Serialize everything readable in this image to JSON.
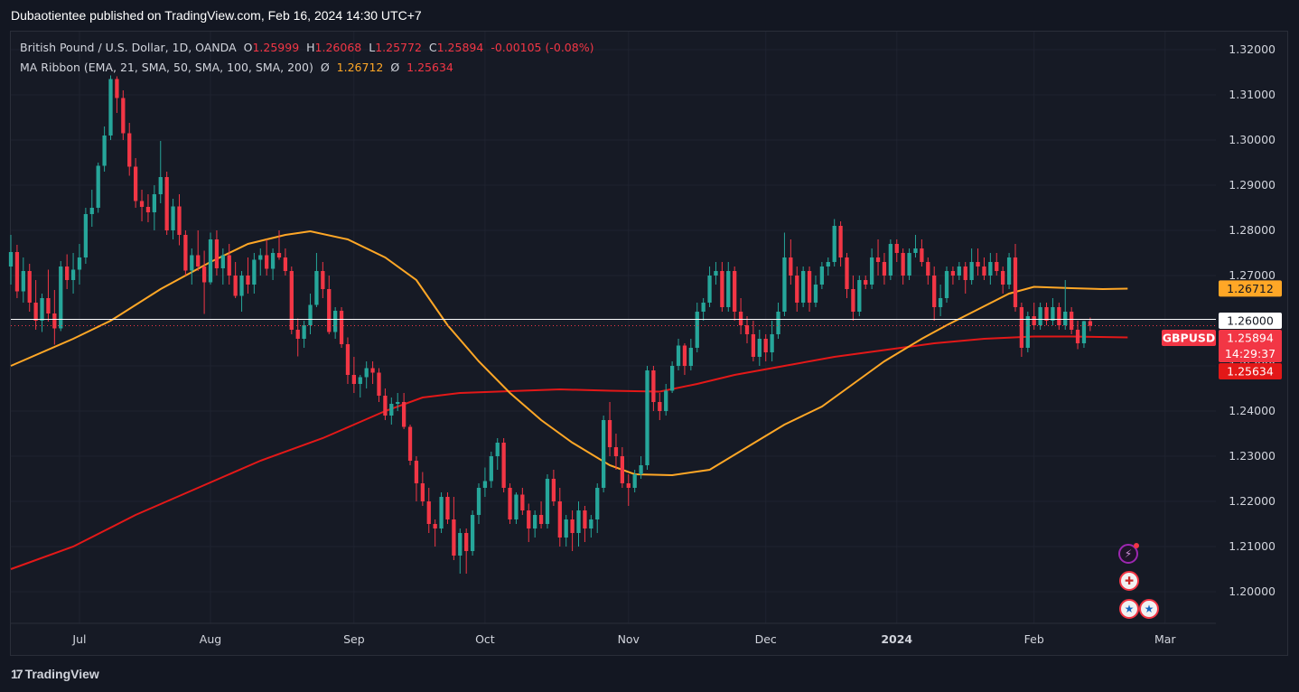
{
  "header": {
    "publisher_line": "Dubaotientee published on TradingView.com, Feb 16, 2024 14:30 UTC+7"
  },
  "legend": {
    "symbol_line": "British Pound / U.S. Dollar, 1D, OANDA",
    "open_label": "O",
    "open": "1.25999",
    "high_label": "H",
    "high": "1.26068",
    "low_label": "L",
    "low": "1.25772",
    "close_label": "C",
    "close": "1.25894",
    "change": "-0.00105 (-0.08%)",
    "ma_ribbon": "MA Ribbon (EMA, 21, SMA, 50, SMA, 100, SMA, 200)",
    "ma_symbol": "Ø",
    "ma_value_1": "1.26712",
    "ma_value_2": "1.25634"
  },
  "footer": {
    "brand": "TradingView",
    "logo": "17"
  },
  "icons": {
    "flash": "lightning-icon",
    "uk_flag": "uk-flag-icon",
    "us_flag": "us-flag-icon",
    "flash_glyph": "⚡",
    "uk_glyph": "✚",
    "us_glyph": "★"
  },
  "colors": {
    "background": "#131722",
    "up": "#26a69a",
    "down": "#f23645",
    "ma_fast": "#ffa726",
    "ma_slow": "#e31818",
    "grid": "#1f2330"
  },
  "chart_data": {
    "type": "candlestick",
    "symbol": "GBPUSD",
    "timeframe": "1D",
    "ylim": [
      1.193,
      1.324
    ],
    "y_ticks": [
      "1.20000",
      "1.21000",
      "1.22000",
      "1.23000",
      "1.24000",
      "1.25000",
      "1.26000",
      "1.27000",
      "1.28000",
      "1.29000",
      "1.30000",
      "1.31000",
      "1.32000"
    ],
    "x_ticks": [
      "Jul",
      "Aug",
      "Sep",
      "Oct",
      "Nov",
      "Dec",
      "2024",
      "Feb",
      "Mar"
    ],
    "x_tick_index": [
      11,
      32,
      55,
      76,
      99,
      121,
      142,
      164,
      185
    ],
    "x_range": [
      0,
      193
    ],
    "candles": [
      [
        1.272,
        1.279,
        1.268,
        1.2752
      ],
      [
        1.2752,
        1.2768,
        1.265,
        1.2665
      ],
      [
        1.2665,
        1.274,
        1.264,
        1.271
      ],
      [
        1.271,
        1.2726,
        1.262,
        1.264
      ],
      [
        1.264,
        1.269,
        1.258,
        1.26
      ],
      [
        1.26,
        1.266,
        1.2575,
        1.265
      ],
      [
        1.265,
        1.2713,
        1.2598,
        1.2616
      ],
      [
        1.2616,
        1.2668,
        1.2547,
        1.2583
      ],
      [
        1.2583,
        1.2732,
        1.2577,
        1.272
      ],
      [
        1.272,
        1.2747,
        1.267,
        1.269
      ],
      [
        1.269,
        1.275,
        1.266,
        1.2713
      ],
      [
        1.2713,
        1.277,
        1.268,
        1.274
      ],
      [
        1.274,
        1.285,
        1.2726,
        1.2836
      ],
      [
        1.2836,
        1.289,
        1.2808,
        1.285
      ],
      [
        1.285,
        1.295,
        1.2839,
        1.2943
      ],
      [
        1.2943,
        1.303,
        1.293,
        1.301
      ],
      [
        1.301,
        1.3143,
        1.3,
        1.3135
      ],
      [
        1.3135,
        1.3141,
        1.306,
        1.3093
      ],
      [
        1.3093,
        1.311,
        1.3,
        1.3015
      ],
      [
        1.3015,
        1.3038,
        1.2921,
        1.2941
      ],
      [
        1.2941,
        1.296,
        1.285,
        1.2865
      ],
      [
        1.2865,
        1.289,
        1.282,
        1.2852
      ],
      [
        1.2852,
        1.288,
        1.2818,
        1.284
      ],
      [
        1.284,
        1.29,
        1.28,
        1.288
      ],
      [
        1.288,
        1.2998,
        1.286,
        1.2918
      ],
      [
        1.2918,
        1.293,
        1.279,
        1.28
      ],
      [
        1.28,
        1.287,
        1.278,
        1.2853
      ],
      [
        1.2853,
        1.288,
        1.2767,
        1.279
      ],
      [
        1.279,
        1.28,
        1.27,
        1.2711
      ],
      [
        1.2711,
        1.276,
        1.268,
        1.2745
      ],
      [
        1.2745,
        1.28,
        1.271,
        1.272
      ],
      [
        1.272,
        1.2755,
        1.2615,
        1.2685
      ],
      [
        1.2685,
        1.2795,
        1.268,
        1.278
      ],
      [
        1.278,
        1.28,
        1.27,
        1.2716
      ],
      [
        1.2716,
        1.276,
        1.268,
        1.2745
      ],
      [
        1.2745,
        1.277,
        1.268,
        1.27
      ],
      [
        1.27,
        1.273,
        1.265,
        1.2655
      ],
      [
        1.2655,
        1.271,
        1.262,
        1.27
      ],
      [
        1.27,
        1.274,
        1.266,
        1.268
      ],
      [
        1.268,
        1.275,
        1.266,
        1.2735
      ],
      [
        1.2735,
        1.276,
        1.27,
        1.2745
      ],
      [
        1.2745,
        1.278,
        1.27,
        1.2715
      ],
      [
        1.2715,
        1.276,
        1.269,
        1.275
      ],
      [
        1.275,
        1.28,
        1.2735,
        1.274
      ],
      [
        1.274,
        1.276,
        1.27,
        1.271
      ],
      [
        1.271,
        1.272,
        1.257,
        1.258
      ],
      [
        1.258,
        1.2605,
        1.2521,
        1.256
      ],
      [
        1.256,
        1.26,
        1.254,
        1.259
      ],
      [
        1.259,
        1.266,
        1.257,
        1.2635
      ],
      [
        1.2635,
        1.275,
        1.263,
        1.271
      ],
      [
        1.271,
        1.273,
        1.265,
        1.267
      ],
      [
        1.267,
        1.27,
        1.257,
        1.2575
      ],
      [
        1.2575,
        1.263,
        1.256,
        1.2622
      ],
      [
        1.2622,
        1.263,
        1.254,
        1.2548
      ],
      [
        1.2548,
        1.2563,
        1.246,
        1.248
      ],
      [
        1.248,
        1.252,
        1.244,
        1.246
      ],
      [
        1.246,
        1.248,
        1.243,
        1.2475
      ],
      [
        1.2475,
        1.251,
        1.245,
        1.2495
      ],
      [
        1.2495,
        1.251,
        1.246,
        1.2485
      ],
      [
        1.2485,
        1.2495,
        1.242,
        1.2434
      ],
      [
        1.2434,
        1.245,
        1.238,
        1.239
      ],
      [
        1.239,
        1.243,
        1.237,
        1.2416
      ],
      [
        1.2416,
        1.244,
        1.24,
        1.242
      ],
      [
        1.242,
        1.244,
        1.236,
        1.2365
      ],
      [
        1.2365,
        1.237,
        1.228,
        1.229
      ],
      [
        1.229,
        1.23,
        1.22,
        1.224
      ],
      [
        1.224,
        1.2265,
        1.219,
        1.22
      ],
      [
        1.22,
        1.223,
        1.213,
        1.215
      ],
      [
        1.215,
        1.216,
        1.21,
        1.214
      ],
      [
        1.214,
        1.222,
        1.213,
        1.221
      ],
      [
        1.221,
        1.222,
        1.215,
        1.216
      ],
      [
        1.216,
        1.221,
        1.207,
        1.208
      ],
      [
        1.208,
        1.214,
        1.204,
        1.213
      ],
      [
        1.213,
        1.214,
        1.204,
        1.209
      ],
      [
        1.209,
        1.218,
        1.208,
        1.217
      ],
      [
        1.217,
        1.224,
        1.215,
        1.223
      ],
      [
        1.223,
        1.2275,
        1.221,
        1.2245
      ],
      [
        1.2245,
        1.231,
        1.223,
        1.23
      ],
      [
        1.23,
        1.234,
        1.227,
        1.233
      ],
      [
        1.233,
        1.234,
        1.222,
        1.223
      ],
      [
        1.223,
        1.224,
        1.215,
        1.216
      ],
      [
        1.216,
        1.222,
        1.215,
        1.2215
      ],
      [
        1.2215,
        1.223,
        1.217,
        1.218
      ],
      [
        1.218,
        1.2195,
        1.211,
        1.214
      ],
      [
        1.214,
        1.218,
        1.212,
        1.217
      ],
      [
        1.217,
        1.22,
        1.214,
        1.215
      ],
      [
        1.215,
        1.226,
        1.214,
        1.225
      ],
      [
        1.225,
        1.227,
        1.219,
        1.22
      ],
      [
        1.22,
        1.223,
        1.21,
        1.212
      ],
      [
        1.212,
        1.217,
        1.21,
        1.216
      ],
      [
        1.216,
        1.218,
        1.209,
        1.213
      ],
      [
        1.213,
        1.22,
        1.21,
        1.218
      ],
      [
        1.218,
        1.219,
        1.211,
        1.214
      ],
      [
        1.214,
        1.217,
        1.212,
        1.216
      ],
      [
        1.216,
        1.224,
        1.213,
        1.223
      ],
      [
        1.223,
        1.239,
        1.222,
        1.238
      ],
      [
        1.238,
        1.242,
        1.23,
        1.232
      ],
      [
        1.232,
        1.235,
        1.227,
        1.23
      ],
      [
        1.23,
        1.232,
        1.223,
        1.224
      ],
      [
        1.224,
        1.226,
        1.219,
        1.223
      ],
      [
        1.223,
        1.227,
        1.222,
        1.226
      ],
      [
        1.226,
        1.23,
        1.225,
        1.228
      ],
      [
        1.228,
        1.25,
        1.227,
        1.249
      ],
      [
        1.249,
        1.25,
        1.24,
        1.242
      ],
      [
        1.242,
        1.244,
        1.238,
        1.24
      ],
      [
        1.24,
        1.246,
        1.239,
        1.2445
      ],
      [
        1.2445,
        1.251,
        1.244,
        1.25
      ],
      [
        1.25,
        1.256,
        1.249,
        1.2545
      ],
      [
        1.2545,
        1.255,
        1.248,
        1.25
      ],
      [
        1.25,
        1.256,
        1.249,
        1.254
      ],
      [
        1.254,
        1.264,
        1.253,
        1.262
      ],
      [
        1.262,
        1.265,
        1.26,
        1.264
      ],
      [
        1.264,
        1.272,
        1.263,
        1.27
      ],
      [
        1.27,
        1.273,
        1.268,
        1.271
      ],
      [
        1.271,
        1.273,
        1.262,
        1.263
      ],
      [
        1.263,
        1.273,
        1.262,
        1.271
      ],
      [
        1.271,
        1.272,
        1.26,
        1.262
      ],
      [
        1.262,
        1.265,
        1.257,
        1.259
      ],
      [
        1.259,
        1.261,
        1.255,
        1.257
      ],
      [
        1.257,
        1.26,
        1.251,
        1.252
      ],
      [
        1.252,
        1.258,
        1.25,
        1.256
      ],
      [
        1.256,
        1.257,
        1.251,
        1.253
      ],
      [
        1.253,
        1.26,
        1.251,
        1.257
      ],
      [
        1.257,
        1.264,
        1.256,
        1.262
      ],
      [
        1.262,
        1.2795,
        1.261,
        1.274
      ],
      [
        1.274,
        1.278,
        1.268,
        1.27
      ],
      [
        1.27,
        1.272,
        1.262,
        1.264
      ],
      [
        1.264,
        1.272,
        1.263,
        1.271
      ],
      [
        1.271,
        1.272,
        1.262,
        1.264
      ],
      [
        1.264,
        1.27,
        1.263,
        1.268
      ],
      [
        1.268,
        1.273,
        1.267,
        1.272
      ],
      [
        1.272,
        1.274,
        1.27,
        1.273
      ],
      [
        1.273,
        1.2825,
        1.272,
        1.281
      ],
      [
        1.281,
        1.282,
        1.272,
        1.274
      ],
      [
        1.274,
        1.275,
        1.265,
        1.267
      ],
      [
        1.267,
        1.27,
        1.26,
        1.262
      ],
      [
        1.262,
        1.27,
        1.261,
        1.269
      ],
      [
        1.269,
        1.27,
        1.267,
        1.268
      ],
      [
        1.268,
        1.276,
        1.267,
        1.274
      ],
      [
        1.274,
        1.278,
        1.27,
        1.273
      ],
      [
        1.273,
        1.275,
        1.268,
        1.27
      ],
      [
        1.27,
        1.278,
        1.269,
        1.277
      ],
      [
        1.277,
        1.278,
        1.273,
        1.275
      ],
      [
        1.275,
        1.276,
        1.268,
        1.27
      ],
      [
        1.27,
        1.276,
        1.269,
        1.275
      ],
      [
        1.275,
        1.279,
        1.274,
        1.276
      ],
      [
        1.276,
        1.278,
        1.272,
        1.273
      ],
      [
        1.273,
        1.274,
        1.268,
        1.27
      ],
      [
        1.27,
        1.272,
        1.26,
        1.263
      ],
      [
        1.263,
        1.268,
        1.261,
        1.265
      ],
      [
        1.265,
        1.272,
        1.264,
        1.271
      ],
      [
        1.271,
        1.272,
        1.268,
        1.27
      ],
      [
        1.27,
        1.273,
        1.269,
        1.272
      ],
      [
        1.272,
        1.273,
        1.266,
        1.269
      ],
      [
        1.269,
        1.276,
        1.268,
        1.273
      ],
      [
        1.273,
        1.276,
        1.27,
        1.272
      ],
      [
        1.272,
        1.274,
        1.269,
        1.27
      ],
      [
        1.27,
        1.275,
        1.268,
        1.273
      ],
      [
        1.273,
        1.275,
        1.27,
        1.271
      ],
      [
        1.271,
        1.272,
        1.266,
        1.268
      ],
      [
        1.268,
        1.275,
        1.267,
        1.274
      ],
      [
        1.274,
        1.277,
        1.262,
        1.263
      ],
      [
        1.263,
        1.264,
        1.252,
        1.254
      ],
      [
        1.254,
        1.262,
        1.253,
        1.261
      ],
      [
        1.261,
        1.264,
        1.258,
        1.259
      ],
      [
        1.259,
        1.264,
        1.258,
        1.263
      ],
      [
        1.263,
        1.264,
        1.259,
        1.26
      ],
      [
        1.26,
        1.265,
        1.259,
        1.263
      ],
      [
        1.263,
        1.264,
        1.258,
        1.259
      ],
      [
        1.259,
        1.269,
        1.258,
        1.262
      ],
      [
        1.262,
        1.263,
        1.257,
        1.258
      ],
      [
        1.258,
        1.26,
        1.2537,
        1.255
      ],
      [
        1.255,
        1.26,
        1.254,
        1.2599
      ],
      [
        1.2599,
        1.2607,
        1.2577,
        1.2589
      ]
    ],
    "ma_fast": [
      [
        0,
        1.25
      ],
      [
        10,
        1.256
      ],
      [
        16,
        1.26
      ],
      [
        24,
        1.267
      ],
      [
        32,
        1.273
      ],
      [
        38,
        1.277
      ],
      [
        44,
        1.279
      ],
      [
        48,
        1.2798
      ],
      [
        54,
        1.278
      ],
      [
        60,
        1.274
      ],
      [
        65,
        1.269
      ],
      [
        70,
        1.259
      ],
      [
        75,
        1.251
      ],
      [
        80,
        1.244
      ],
      [
        85,
        1.238
      ],
      [
        90,
        1.233
      ],
      [
        96,
        1.228
      ],
      [
        100,
        1.226
      ],
      [
        106,
        1.2258
      ],
      [
        112,
        1.227
      ],
      [
        118,
        1.232
      ],
      [
        124,
        1.237
      ],
      [
        130,
        1.241
      ],
      [
        136,
        1.247
      ],
      [
        140,
        1.251
      ],
      [
        146,
        1.256
      ],
      [
        150,
        1.259
      ],
      [
        155,
        1.2625
      ],
      [
        160,
        1.266
      ],
      [
        164,
        1.2675
      ],
      [
        170,
        1.2672
      ],
      [
        175,
        1.267
      ],
      [
        179,
        1.2671
      ]
    ],
    "ma_slow": [
      [
        0,
        1.205
      ],
      [
        10,
        1.21
      ],
      [
        20,
        1.217
      ],
      [
        30,
        1.223
      ],
      [
        40,
        1.229
      ],
      [
        50,
        1.234
      ],
      [
        55,
        1.237
      ],
      [
        60,
        1.24
      ],
      [
        66,
        1.243
      ],
      [
        72,
        1.244
      ],
      [
        80,
        1.2444
      ],
      [
        88,
        1.2448
      ],
      [
        96,
        1.2445
      ],
      [
        104,
        1.2443
      ],
      [
        110,
        1.246
      ],
      [
        116,
        1.248
      ],
      [
        124,
        1.25
      ],
      [
        132,
        1.252
      ],
      [
        140,
        1.2535
      ],
      [
        148,
        1.255
      ],
      [
        156,
        1.256
      ],
      [
        164,
        1.2565
      ],
      [
        170,
        1.2565
      ],
      [
        179,
        1.2563
      ]
    ],
    "last_price_line": 1.2589,
    "white_line": 1.2603,
    "price_labels": [
      {
        "name": "ma-fast-label",
        "text": "1.26712",
        "value": 1.26712,
        "bg": "#ffa726",
        "fg": "#131722"
      },
      {
        "name": "crosshair-price-label",
        "text": "1.26000",
        "value": 1.26,
        "bg": "#ffffff",
        "fg": "#131722"
      },
      {
        "name": "last-price-label",
        "text": "1.25894",
        "value": 1.25894,
        "bg": "#f23645",
        "fg": "#ffffff",
        "symbol": "GBPUSD",
        "countdown": "14:29:37"
      },
      {
        "name": "ma-slow-label",
        "text": "1.25634",
        "value": 1.25634,
        "bg": "#e31818",
        "fg": "#ffffff"
      }
    ]
  }
}
